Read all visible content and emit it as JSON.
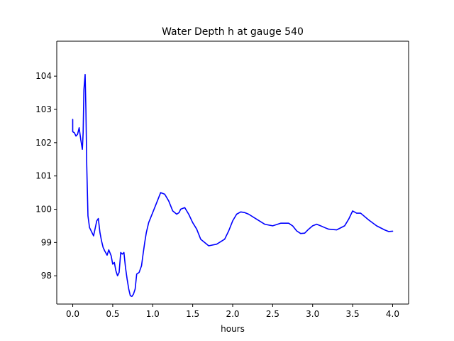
{
  "chart_data": {
    "type": "line",
    "title": "Water Depth h at gauge 540",
    "xlabel": "hours",
    "ylabel": "",
    "xlim": [
      -0.2,
      4.2
    ],
    "ylim": [
      97.15,
      105.05
    ],
    "xticks": [
      0.0,
      0.5,
      1.0,
      1.5,
      2.0,
      2.5,
      3.0,
      3.5,
      4.0
    ],
    "xtick_labels": [
      "0.0",
      "0.5",
      "1.0",
      "1.5",
      "2.0",
      "2.5",
      "3.0",
      "3.5",
      "4.0"
    ],
    "yticks": [
      98,
      99,
      100,
      101,
      102,
      103,
      104
    ],
    "ytick_labels": [
      "98",
      "99",
      "100",
      "101",
      "102",
      "103",
      "104"
    ],
    "grid": false,
    "series": [
      {
        "color": "#0000ff",
        "x": [
          0.0,
          0.0,
          0.02,
          0.04,
          0.06,
          0.08,
          0.1,
          0.12,
          0.13,
          0.14,
          0.155,
          0.165,
          0.175,
          0.19,
          0.21,
          0.23,
          0.26,
          0.3,
          0.32,
          0.34,
          0.36,
          0.38,
          0.4,
          0.43,
          0.45,
          0.48,
          0.5,
          0.52,
          0.54,
          0.56,
          0.58,
          0.6,
          0.62,
          0.64,
          0.66,
          0.68,
          0.7,
          0.72,
          0.74,
          0.76,
          0.78,
          0.8,
          0.83,
          0.86,
          0.88,
          0.9,
          0.92,
          0.95,
          1.0,
          1.05,
          1.1,
          1.15,
          1.2,
          1.25,
          1.3,
          1.33,
          1.35,
          1.4,
          1.45,
          1.5,
          1.55,
          1.6,
          1.7,
          1.8,
          1.9,
          1.95,
          2.0,
          2.05,
          2.1,
          2.15,
          2.2,
          2.3,
          2.4,
          2.5,
          2.6,
          2.7,
          2.75,
          2.8,
          2.85,
          2.9,
          2.95,
          3.0,
          3.05,
          3.1,
          3.15,
          3.2,
          3.3,
          3.4,
          3.45,
          3.5,
          3.55,
          3.6,
          3.7,
          3.8,
          3.9,
          3.95,
          4.0
        ],
        "y": [
          102.7,
          102.33,
          102.3,
          102.2,
          102.25,
          102.45,
          102.1,
          101.8,
          102.3,
          103.6,
          104.05,
          103.0,
          101.3,
          99.8,
          99.45,
          99.35,
          99.2,
          99.65,
          99.72,
          99.3,
          99.05,
          98.85,
          98.75,
          98.62,
          98.78,
          98.6,
          98.35,
          98.4,
          98.15,
          98.0,
          98.1,
          98.7,
          98.65,
          98.7,
          98.25,
          97.9,
          97.6,
          97.4,
          97.38,
          97.45,
          97.6,
          98.05,
          98.1,
          98.3,
          98.65,
          99.0,
          99.3,
          99.6,
          99.9,
          100.2,
          100.5,
          100.45,
          100.25,
          99.95,
          99.85,
          99.9,
          100.0,
          100.05,
          99.85,
          99.6,
          99.4,
          99.1,
          98.9,
          98.95,
          99.1,
          99.35,
          99.65,
          99.85,
          99.92,
          99.9,
          99.85,
          99.7,
          99.55,
          99.5,
          99.58,
          99.58,
          99.5,
          99.35,
          99.27,
          99.28,
          99.4,
          99.5,
          99.55,
          99.5,
          99.45,
          99.4,
          99.38,
          99.5,
          99.7,
          99.95,
          99.88,
          99.88,
          99.68,
          99.5,
          99.38,
          99.33,
          99.34
        ]
      }
    ]
  }
}
